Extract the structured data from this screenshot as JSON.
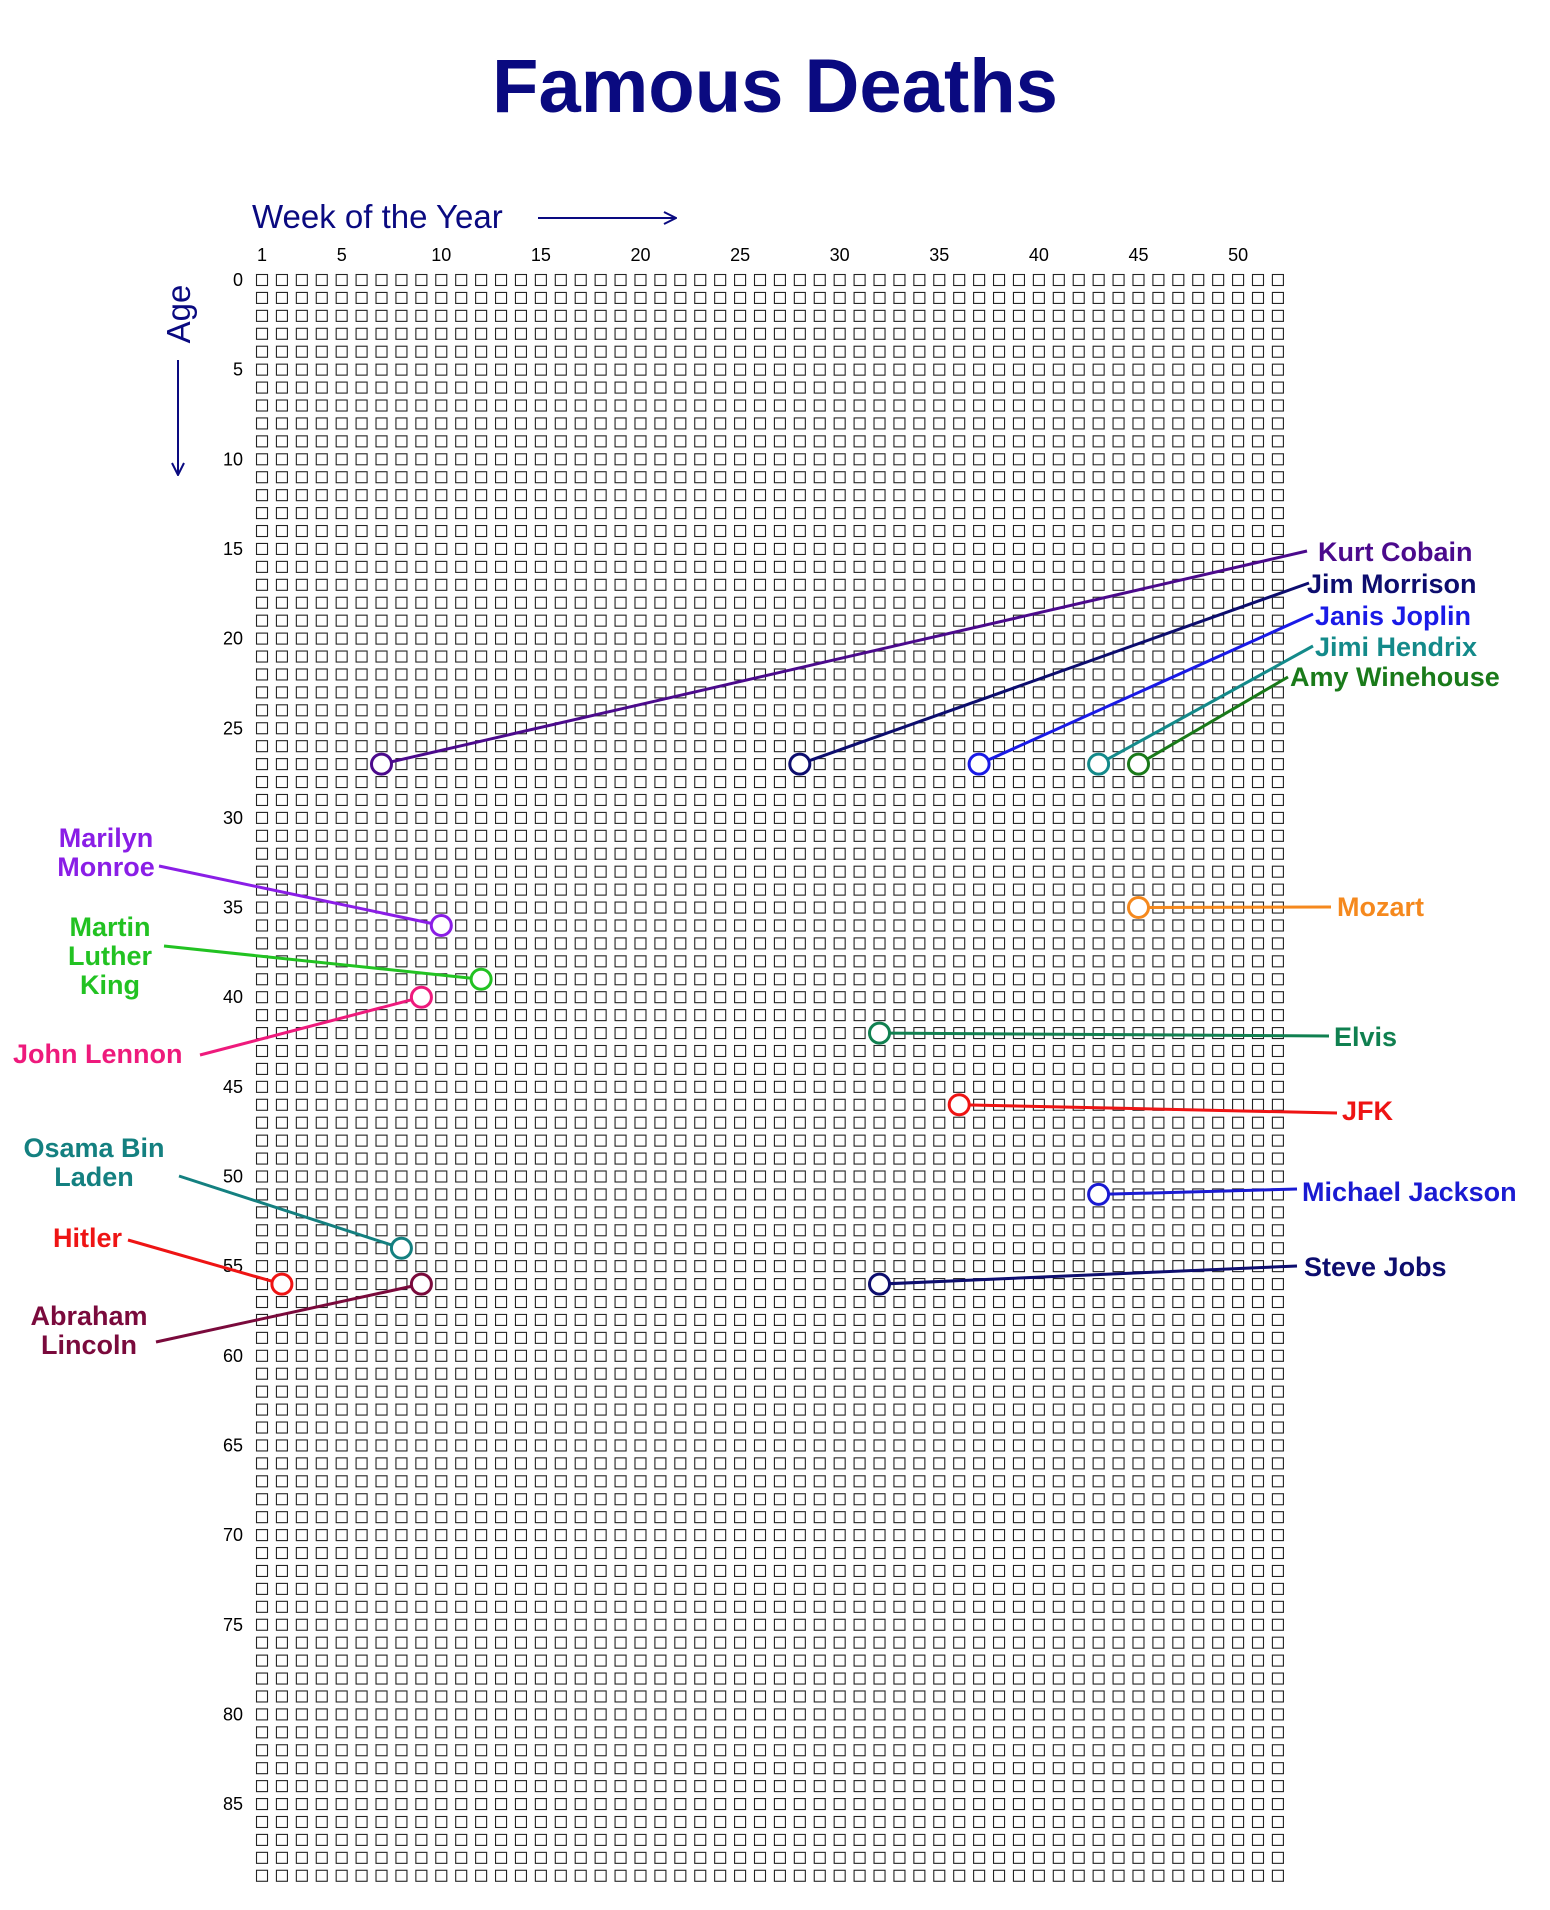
{
  "chart_data": {
    "type": "scatter",
    "title": "Famous Deaths",
    "xlabel": "Week of the Year",
    "ylabel": "Age",
    "x_ticks": [
      1,
      5,
      10,
      15,
      20,
      25,
      30,
      35,
      40,
      45,
      50
    ],
    "y_ticks": [
      0,
      5,
      10,
      15,
      20,
      25,
      30,
      35,
      40,
      45,
      50,
      55,
      60,
      65,
      70,
      75,
      80,
      85
    ],
    "xlim": [
      1,
      52
    ],
    "ylim": [
      0,
      89
    ],
    "grid": true,
    "points": [
      {
        "name": "Kurt Cobain",
        "week": 7,
        "age": 27,
        "color": "#4b0a8c"
      },
      {
        "name": "Jim Morrison",
        "week": 28,
        "age": 27,
        "color": "#0d0d6e"
      },
      {
        "name": "Janis Joplin",
        "week": 37,
        "age": 27,
        "color": "#1a1ae6"
      },
      {
        "name": "Jimi Hendrix",
        "week": 43,
        "age": 27,
        "color": "#148a8a"
      },
      {
        "name": "Amy Winehouse",
        "week": 45,
        "age": 27,
        "color": "#1a7a1a"
      },
      {
        "name": "Mozart",
        "week": 45,
        "age": 35,
        "color": "#f5891e"
      },
      {
        "name": "Marilyn Monroe",
        "week": 10,
        "age": 36,
        "color": "#8a1ee6"
      },
      {
        "name": "Martin Luther King",
        "week": 12,
        "age": 39,
        "color": "#22c222"
      },
      {
        "name": "John Lennon",
        "week": 9,
        "age": 40,
        "color": "#ee1a7c"
      },
      {
        "name": "Elvis",
        "week": 32,
        "age": 42,
        "color": "#108050"
      },
      {
        "name": "JFK",
        "week": 36,
        "age": 46,
        "color": "#ee1414"
      },
      {
        "name": "Michael Jackson",
        "week": 43,
        "age": 51,
        "color": "#1a1ad2"
      },
      {
        "name": "Osama Bin Laden",
        "week": 8,
        "age": 54,
        "color": "#148080"
      },
      {
        "name": "Hitler",
        "week": 2,
        "age": 56,
        "color": "#ee1414"
      },
      {
        "name": "Abraham Lincoln",
        "week": 9,
        "age": 56,
        "color": "#7a0a3c"
      },
      {
        "name": "Steve Jobs",
        "week": 32,
        "age": 56,
        "color": "#0d0d6e"
      }
    ]
  }
}
